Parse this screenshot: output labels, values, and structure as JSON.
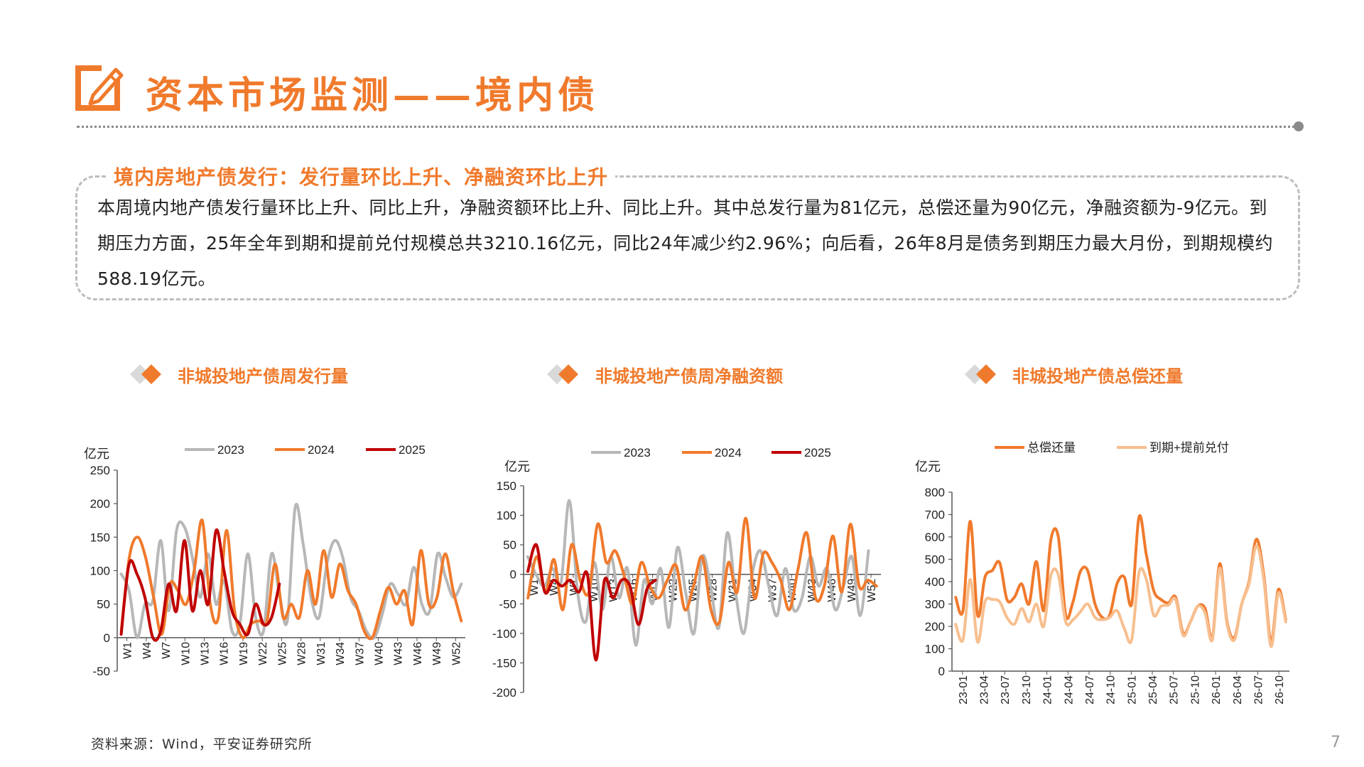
{
  "page": {
    "title": "资本市场监测——境内债",
    "icon": "edit-pencil-icon",
    "accent_color": "#f07a2c",
    "source": "资料来源：Wind，平安证券研究所",
    "page_number": "7"
  },
  "summary": {
    "heading": "境内房地产债发行：发行量环比上升、净融资环比上升",
    "text": "本周境内地产债发行量环比上升、同比上升，净融资额环比上升、同比上升。其中总发行量为81亿元，总偿还量为90亿元，净融资额为-9亿元。到期压力方面，25年全年到期和提前兑付规模总共3210.16亿元，同比24年减少约2.96%；向后看，26年8月是债务到期压力最大月份，到期规模约588.19亿元。"
  },
  "panels": [
    {
      "title": "非城投地产债周发行量"
    },
    {
      "title": "非城投地产债周净融资额"
    },
    {
      "title": "非城投地产债总偿还量"
    }
  ],
  "chart_data": [
    {
      "type": "line",
      "title": "非城投地产债周发行量",
      "ylabel": "亿元",
      "ylim": [
        -50,
        250
      ],
      "yticks": [
        -50,
        0,
        50,
        100,
        150,
        200,
        250
      ],
      "xticks": [
        "W1",
        "W4",
        "W7",
        "W10",
        "W13",
        "W16",
        "W19",
        "W22",
        "W25",
        "W28",
        "W31",
        "W34",
        "W37",
        "W40",
        "W43",
        "W46",
        "W49",
        "W52"
      ],
      "legend": [
        "2023",
        "2024",
        "2025"
      ],
      "series": [
        {
          "name": "2023",
          "color": "#b7b7b7",
          "values": [
            95,
            70,
            0,
            50,
            55,
            145,
            40,
            160,
            165,
            120,
            60,
            125,
            50,
            85,
            10,
            20,
            125,
            30,
            10,
            125,
            65,
            25,
            195,
            140,
            60,
            30,
            110,
            145,
            120,
            60,
            40,
            10,
            0,
            35,
            80,
            65,
            50,
            105,
            50,
            40,
            125,
            90,
            60,
            80
          ]
        },
        {
          "name": "2024",
          "color": "#f07a2c",
          "values": [
            10,
            120,
            150,
            120,
            60,
            5,
            80,
            70,
            50,
            100,
            175,
            50,
            30,
            160,
            40,
            0,
            20,
            25,
            25,
            110,
            30,
            50,
            30,
            100,
            50,
            130,
            60,
            110,
            70,
            50,
            10,
            0,
            40,
            75,
            50,
            70,
            20,
            130,
            50,
            60,
            125,
            70,
            25
          ]
        },
        {
          "name": "2025",
          "color": "#c00000",
          "values": [
            5,
            110,
            95,
            60,
            0,
            10,
            80,
            40,
            145,
            40,
            100,
            50,
            160,
            100,
            40,
            20,
            5,
            50,
            20,
            30,
            80
          ]
        }
      ]
    },
    {
      "type": "line",
      "title": "非城投地产债周净融资额",
      "ylabel": "亿元",
      "ylim": [
        -200,
        150
      ],
      "yticks": [
        -200,
        -150,
        -100,
        -50,
        0,
        50,
        100,
        150
      ],
      "xticks": [
        "W1",
        "W4",
        "W7",
        "W10",
        "W13",
        "W16",
        "W19",
        "W22",
        "W25",
        "W28",
        "W31",
        "W34",
        "W37",
        "W40",
        "W43",
        "W46",
        "W49",
        "W52"
      ],
      "legend": [
        "2023",
        "2024",
        "2025"
      ],
      "series": [
        {
          "name": "2023",
          "color": "#b7b7b7",
          "values": [
            30,
            0,
            -20,
            10,
            -15,
            125,
            -30,
            -80,
            20,
            -60,
            30,
            -40,
            10,
            -120,
            -10,
            -50,
            10,
            -90,
            45,
            -30,
            -100,
            30,
            -20,
            -90,
            70,
            -30,
            -100,
            0,
            40,
            -20,
            -70,
            10,
            -60,
            -40,
            30,
            -20,
            10,
            -60,
            -20,
            30,
            -70,
            40
          ]
        },
        {
          "name": "2024",
          "color": "#f07a2c",
          "values": [
            -40,
            30,
            -30,
            25,
            -60,
            50,
            -10,
            -30,
            85,
            20,
            40,
            0,
            -50,
            20,
            -20,
            -40,
            -10,
            15,
            -60,
            -20,
            30,
            -60,
            -80,
            20,
            -30,
            95,
            -40,
            35,
            20,
            -10,
            -60,
            10,
            70,
            -40,
            -20,
            65,
            -30,
            85,
            -20,
            -10,
            -20
          ]
        },
        {
          "name": "2025",
          "color": "#c00000",
          "values": [
            5,
            50,
            -30,
            -10,
            -20,
            -10,
            -30,
            0,
            -145,
            -10,
            -40,
            -10,
            -20,
            -85,
            -25,
            -10
          ]
        }
      ]
    },
    {
      "type": "line",
      "title": "非城投地产债总偿还量",
      "ylabel": "亿元",
      "ylim": [
        0,
        800
      ],
      "yticks": [
        0,
        100,
        200,
        300,
        400,
        500,
        600,
        700,
        800
      ],
      "xticks": [
        "23-01",
        "23-04",
        "23-07",
        "23-10",
        "24-01",
        "24-04",
        "24-07",
        "24-10",
        "25-01",
        "25-04",
        "25-07",
        "25-10",
        "26-01",
        "26-04",
        "26-07",
        "26-10"
      ],
      "legend": [
        "总偿还量",
        "到期+提前兑付"
      ],
      "series": [
        {
          "name": "总偿还量",
          "color": "#f07a2c",
          "values": [
            330,
            270,
            670,
            250,
            420,
            450,
            485,
            320,
            330,
            390,
            300,
            490,
            270,
            590,
            600,
            250,
            310,
            445,
            450,
            300,
            240,
            250,
            390,
            420,
            300,
            690,
            520,
            360,
            320,
            305,
            330,
            170,
            220,
            290,
            280,
            150,
            480,
            220,
            150,
            300,
            400,
            590,
            430,
            130,
            365,
            230
          ]
        },
        {
          "name": "到期+提前兑付",
          "color": "#f7bf8f",
          "values": [
            210,
            140,
            410,
            130,
            310,
            320,
            310,
            240,
            210,
            280,
            220,
            300,
            200,
            430,
            430,
            220,
            230,
            265,
            300,
            240,
            230,
            240,
            270,
            190,
            140,
            440,
            410,
            250,
            290,
            295,
            320,
            160,
            220,
            290,
            260,
            140,
            460,
            210,
            140,
            300,
            390,
            560,
            410,
            110,
            350,
            220
          ]
        }
      ]
    }
  ]
}
